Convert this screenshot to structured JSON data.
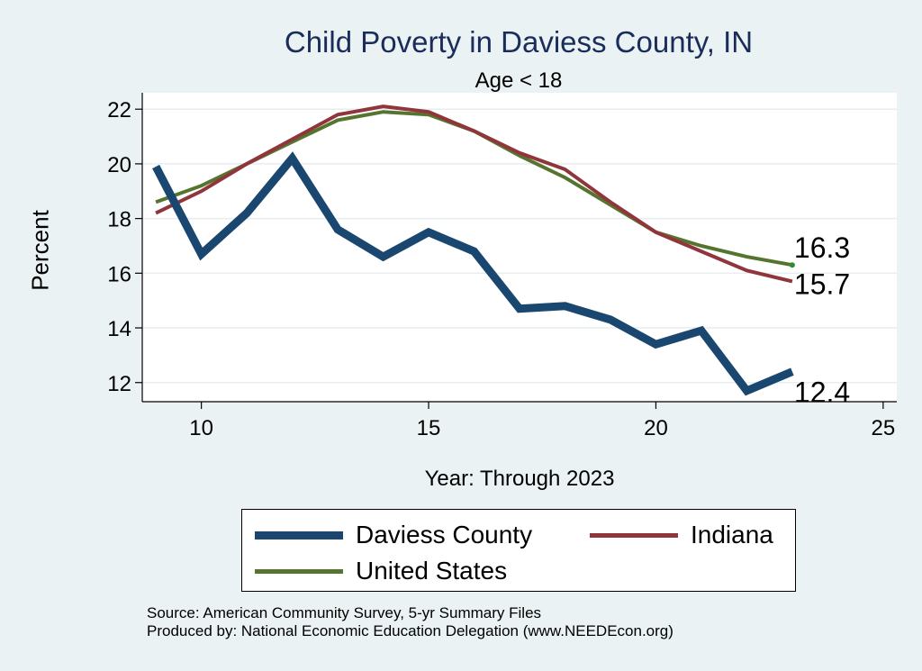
{
  "chart_data": {
    "type": "line",
    "title": "Child Poverty in Daviess County, IN",
    "subtitle": "Age < 18",
    "xlabel": "Year: Through 2023",
    "ylabel": "Percent",
    "xlim": [
      8.7,
      25.3
    ],
    "ylim": [
      11.3,
      22.6
    ],
    "xticks": [
      10,
      15,
      20,
      25
    ],
    "yticks": [
      12,
      14,
      16,
      18,
      20,
      22
    ],
    "grid": true,
    "legend_position": "bottom",
    "series": [
      {
        "name": "Daviess County",
        "color": "#1a476f",
        "width": 9,
        "x": [
          9,
          10,
          11,
          12,
          13,
          14,
          15,
          16,
          17,
          18,
          19,
          20,
          21,
          22,
          23
        ],
        "values": [
          19.9,
          16.7,
          18.2,
          20.2,
          17.6,
          16.6,
          17.5,
          16.8,
          14.7,
          14.8,
          14.3,
          13.4,
          13.9,
          11.7,
          12.4
        ],
        "end_label": "12.4"
      },
      {
        "name": "Indiana",
        "color": "#90353b",
        "width": 4,
        "x": [
          9,
          10,
          11,
          12,
          13,
          14,
          15,
          16,
          17,
          18,
          19,
          20,
          21,
          22,
          23
        ],
        "values": [
          18.2,
          19.0,
          20.0,
          20.9,
          21.8,
          22.1,
          21.9,
          21.2,
          20.4,
          19.8,
          18.6,
          17.5,
          16.8,
          16.1,
          15.7
        ],
        "end_label": "15.7"
      },
      {
        "name": "United States",
        "color": "#55752f",
        "width": 4,
        "x": [
          9,
          10,
          11,
          12,
          13,
          14,
          15,
          16,
          17,
          18,
          19,
          20,
          21,
          22,
          23
        ],
        "values": [
          18.6,
          19.2,
          20.0,
          20.8,
          21.6,
          21.9,
          21.8,
          21.2,
          20.3,
          19.5,
          18.5,
          17.5,
          17.0,
          16.6,
          16.3
        ],
        "end_label": "16.3"
      }
    ]
  },
  "legend": {
    "items": [
      "Daviess County",
      "Indiana",
      "United States"
    ]
  },
  "source": {
    "line1": "Source: American Community Survey, 5-yr Summary Files",
    "line2": "Produced by: National Economic Education Delegation (www.NEEDEcon.org)"
  }
}
